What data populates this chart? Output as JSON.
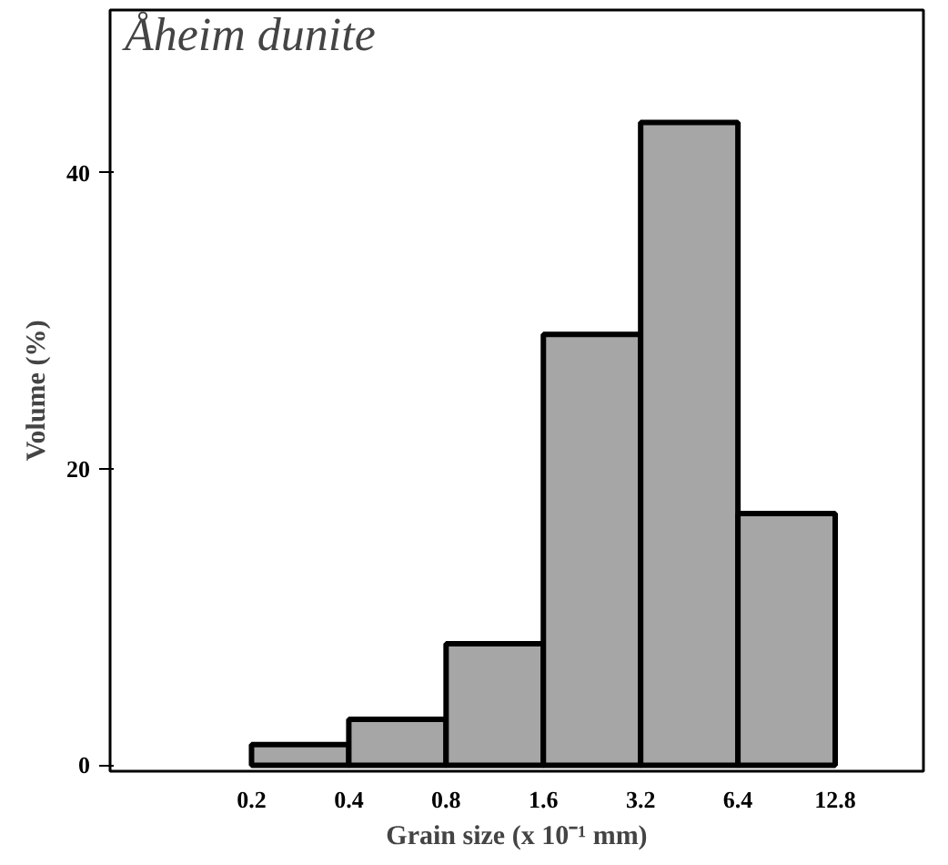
{
  "chart_data": {
    "type": "histogram",
    "title": "Åheim dunite",
    "xlabel": "Grain size (x 10⁻¹ mm)",
    "ylabel": "Volume (%)",
    "bins": [
      0.2,
      0.4,
      0.8,
      1.6,
      3.2,
      6.4,
      12.8
    ],
    "values": [
      1.4,
      3.1,
      8.2,
      29.1,
      43.4,
      17.0
    ],
    "color": "#a6a6a6",
    "log": "x",
    "xlim": [
      0.073,
      24
    ],
    "xticks": [
      0.2,
      0.4,
      0.8,
      1.6,
      3.2,
      6.4,
      12.8
    ],
    "ylim": [
      -0.4,
      51
    ],
    "yticks": [
      0,
      20,
      40
    ],
    "grid": false
  }
}
